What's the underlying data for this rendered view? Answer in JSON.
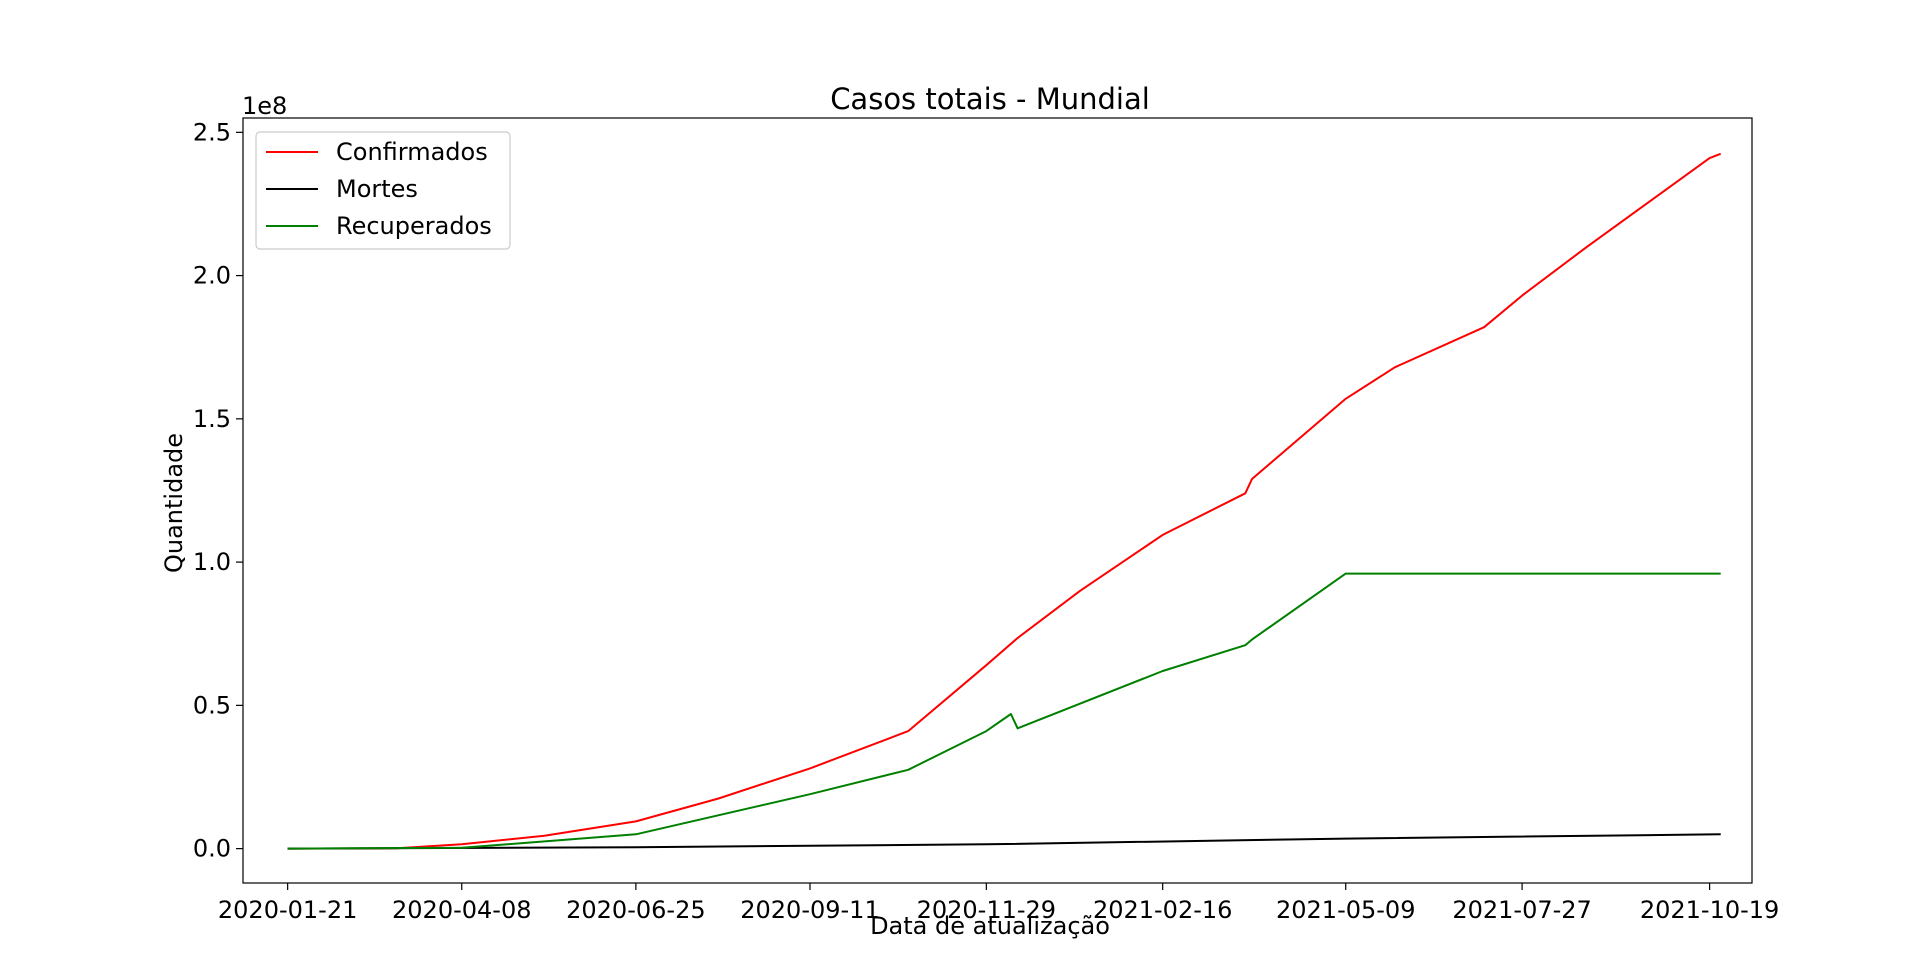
{
  "chart_data": {
    "type": "line",
    "title": "Casos totais - Mundial",
    "xlabel": "Data de atualização",
    "ylabel": "Quantidade",
    "y_offset_label": "1e8",
    "x_ticks": [
      "2020-01-21",
      "2020-04-08",
      "2020-06-25",
      "2020-09-11",
      "2020-11-29",
      "2021-02-16",
      "2021-05-09",
      "2021-07-27",
      "2021-10-19"
    ],
    "y_ticks": [
      "0.0",
      "0.5",
      "1.0",
      "1.5",
      "2.0",
      "2.5"
    ],
    "y_tick_values": [
      0,
      0.5,
      1.0,
      1.5,
      2.0,
      2.5
    ],
    "ylim": [
      -0.12,
      2.55
    ],
    "xlim": [
      "2020-01-01",
      "2021-11-07"
    ],
    "grid": false,
    "legend_position": "top-left",
    "series": [
      {
        "name": "Confirmados",
        "color": "#ff0000",
        "points": [
          [
            "2020-01-21",
            0.0
          ],
          [
            "2020-03-10",
            0.001
          ],
          [
            "2020-04-08",
            0.015
          ],
          [
            "2020-05-15",
            0.045
          ],
          [
            "2020-06-25",
            0.095
          ],
          [
            "2020-08-01",
            0.175
          ],
          [
            "2020-09-11",
            0.28
          ],
          [
            "2020-10-25",
            0.41
          ],
          [
            "2020-11-29",
            0.64
          ],
          [
            "2020-12-13",
            0.735
          ],
          [
            "2021-01-10",
            0.9
          ],
          [
            "2021-02-16",
            1.095
          ],
          [
            "2021-03-25",
            1.24
          ],
          [
            "2021-03-28",
            1.29
          ],
          [
            "2021-05-09",
            1.57
          ],
          [
            "2021-05-31",
            1.68
          ],
          [
            "2021-07-10",
            1.82
          ],
          [
            "2021-07-27",
            1.93
          ],
          [
            "2021-08-25",
            2.1
          ],
          [
            "2021-10-19",
            2.41
          ],
          [
            "2021-10-24",
            2.425
          ]
        ]
      },
      {
        "name": "Mortes",
        "color": "#000000",
        "points": [
          [
            "2020-01-21",
            0.0
          ],
          [
            "2020-06-25",
            0.005
          ],
          [
            "2020-11-29",
            0.015
          ],
          [
            "2021-05-09",
            0.035
          ],
          [
            "2021-10-24",
            0.05
          ]
        ]
      },
      {
        "name": "Recuperados",
        "color": "#008000",
        "points": [
          [
            "2020-01-21",
            0.0
          ],
          [
            "2020-04-08",
            0.003
          ],
          [
            "2020-06-25",
            0.05
          ],
          [
            "2020-09-11",
            0.19
          ],
          [
            "2020-10-25",
            0.275
          ],
          [
            "2020-11-29",
            0.41
          ],
          [
            "2020-12-10",
            0.47
          ],
          [
            "2020-12-13",
            0.42
          ],
          [
            "2021-02-16",
            0.62
          ],
          [
            "2021-03-25",
            0.71
          ],
          [
            "2021-03-28",
            0.73
          ],
          [
            "2021-05-09",
            0.96
          ],
          [
            "2021-10-24",
            0.96
          ]
        ]
      }
    ]
  }
}
